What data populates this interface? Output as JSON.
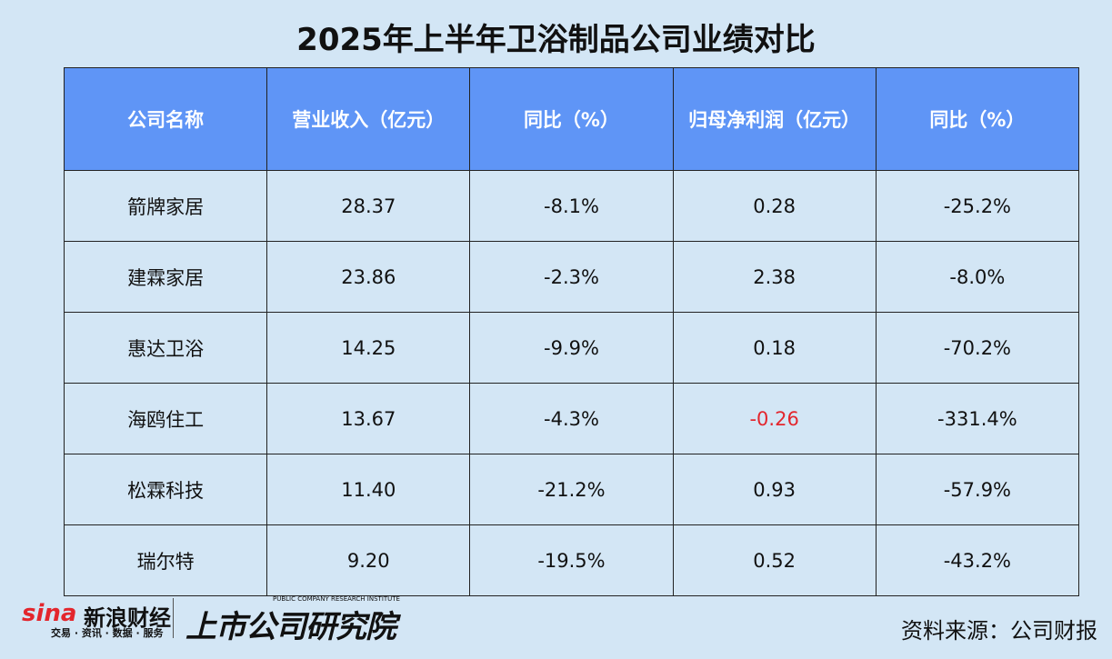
{
  "header": {
    "title": "2025年上半年卫浴制品公司业绩对比"
  },
  "table": {
    "columns": [
      "公司名称",
      "营业收入（亿元）",
      "同比（%）",
      "归母净利润（亿元）",
      "同比（%）"
    ],
    "rows": [
      [
        "箭牌家居",
        "28.37",
        "-8.1%",
        "0.28",
        "-25.2%"
      ],
      [
        "建霖家居",
        "23.86",
        "-2.3%",
        "2.38",
        "-8.0%"
      ],
      [
        "惠达卫浴",
        "14.25",
        "-9.9%",
        "0.18",
        "-70.2%"
      ],
      [
        "海鸥住工",
        "13.67",
        "-4.3%",
        "-0.26",
        "-331.4%"
      ],
      [
        "松霖科技",
        "11.40",
        "-21.2%",
        "0.93",
        "-57.9%"
      ],
      [
        "瑞尔特",
        "9.20",
        "-19.5%",
        "0.52",
        "-43.2%"
      ]
    ]
  },
  "footer": {
    "brand": "sina",
    "brand_name": "新浪财经",
    "brand_tagline": "交易 · 资讯 · 数据 · 服务",
    "institute": "上市公司研究院",
    "institute_en": "PUBLIC COMPANY RESEARCH INSTITUTE",
    "source": "资料来源：公司财报"
  }
}
